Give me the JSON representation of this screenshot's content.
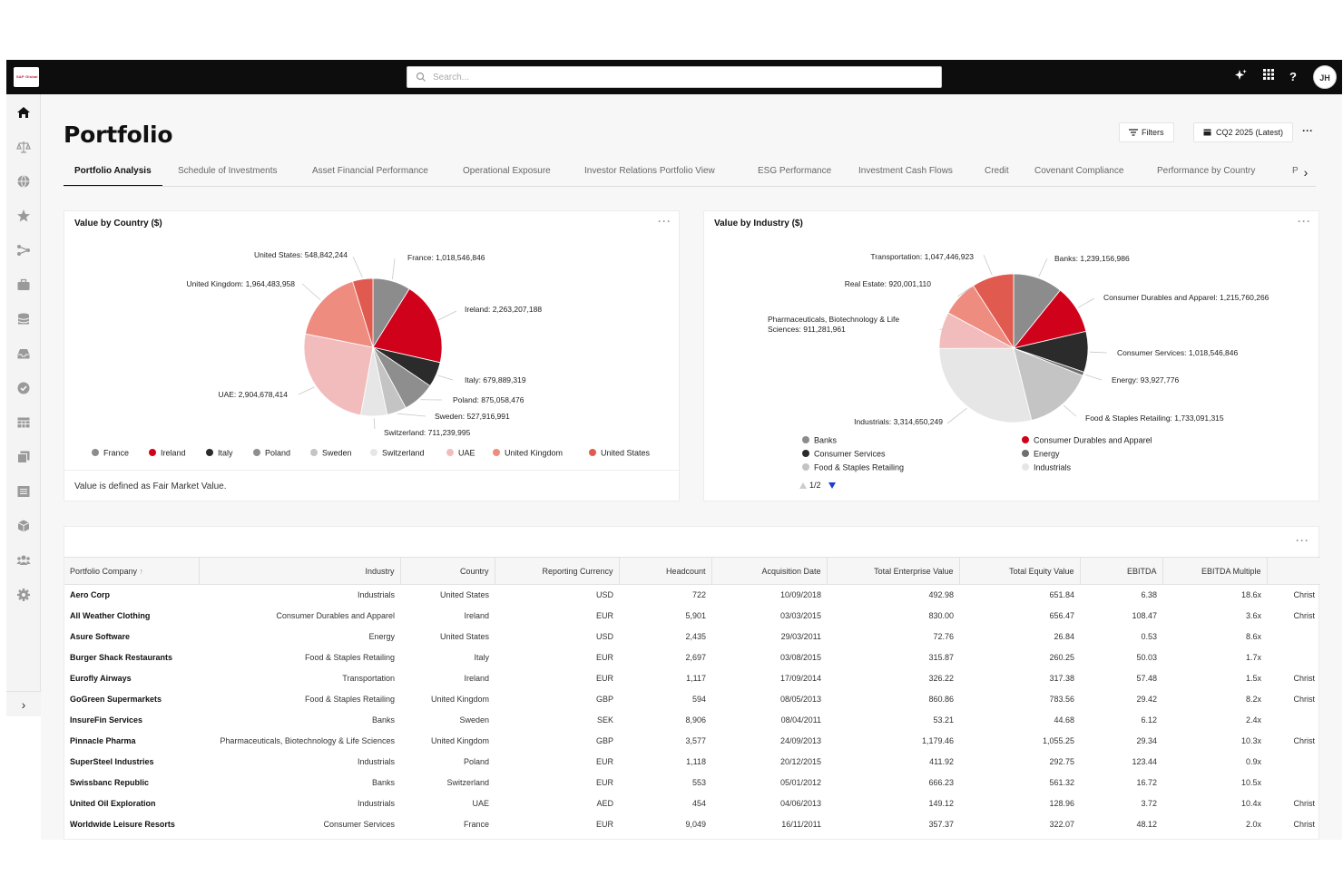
{
  "header": {
    "logo_text": "S&P Global",
    "search_placeholder": "Search...",
    "icons": [
      "sparkle-icon",
      "apps-grid-icon",
      "help-icon"
    ],
    "help_label": "?",
    "avatar_initials": "JH"
  },
  "sidebar": {
    "items": [
      "home-icon",
      "scales-icon",
      "globe-icon",
      "star-icon",
      "share-icon",
      "briefcase-icon",
      "database-icon",
      "inbox-icon",
      "check-circle-icon",
      "table-icon",
      "copy-icon",
      "list-icon",
      "cube-icon",
      "users-icon",
      "gear-icon"
    ],
    "expand_label": "›"
  },
  "page": {
    "title": "Portfolio",
    "filters_label": "Filters",
    "period_label": "CQ2 2025 (Latest)",
    "more_label": "···"
  },
  "tabs": [
    {
      "label": "Portfolio Analysis",
      "active": true
    },
    {
      "label": "Schedule of Investments"
    },
    {
      "label": "Asset Financial Performance"
    },
    {
      "label": "Operational Exposure"
    },
    {
      "label": "Investor Relations Portfolio View"
    },
    {
      "label": "ESG Performance"
    },
    {
      "label": "Investment Cash Flows"
    },
    {
      "label": "Credit"
    },
    {
      "label": "Covenant Compliance"
    },
    {
      "label": "Performance by Country"
    },
    {
      "label": "Po"
    }
  ],
  "country_card": {
    "title": "Value by Country ($)",
    "note": "Value is defined as Fair Market Value.",
    "more_label": "···"
  },
  "industry_card": {
    "title": "Value by Industry ($)",
    "more_label": "···",
    "pager": "1/2"
  },
  "chart_data": [
    {
      "type": "pie",
      "title": "Value by Country ($)",
      "legend_placement": "bottom",
      "slices": [
        {
          "label": "France",
          "value": 1018546846,
          "display": "France: 1,018,546,846",
          "color": "#8c8c8c"
        },
        {
          "label": "Ireland",
          "value": 2263207188,
          "display": "Ireland: 2,263,207,188",
          "color": "#d0021b"
        },
        {
          "label": "Italy",
          "value": 679889319,
          "display": "Italy: 679,889,319",
          "color": "#2b2b2b"
        },
        {
          "label": "Poland",
          "value": 875058476,
          "display": "Poland: 875,058,476",
          "color": "#8e8e8e"
        },
        {
          "label": "Sweden",
          "value": 527916991,
          "display": "Sweden: 527,916,991",
          "color": "#c4c4c4"
        },
        {
          "label": "Switzerland",
          "value": 711239995,
          "display": "Switzerland: 711,239,995",
          "color": "#e6e6e6"
        },
        {
          "label": "UAE",
          "value": 2904678414,
          "display": "UAE: 2,904,678,414",
          "color": "#f2bcbc"
        },
        {
          "label": "United Kingdom",
          "value": 1964483958,
          "display": "United Kingdom: 1,964,483,958",
          "color": "#ee8c80"
        },
        {
          "label": "United States",
          "value": 548842244,
          "display": "United States: 548,842,244",
          "color": "#e05a4f"
        }
      ]
    },
    {
      "type": "pie",
      "title": "Value by Industry ($)",
      "legend_placement": "bottom",
      "slices": [
        {
          "label": "Banks",
          "value": 1239156986,
          "display": "Banks: 1,239,156,986",
          "color": "#8c8c8c"
        },
        {
          "label": "Consumer Durables and Apparel",
          "value": 1215760266,
          "display": "Consumer Durables and Apparel: 1,215,760,266",
          "color": "#d0021b"
        },
        {
          "label": "Consumer Services",
          "value": 1018546846,
          "display": "Consumer Services: 1,018,546,846",
          "color": "#2b2b2b"
        },
        {
          "label": "Energy",
          "value": 93927776,
          "display": "Energy: 93,927,776",
          "color": "#6e6e6e"
        },
        {
          "label": "Food & Staples Retailing",
          "value": 1733091315,
          "display": "Food & Staples Retailing: 1,733,091,315",
          "color": "#c4c4c4"
        },
        {
          "label": "Industrials",
          "value": 3314650249,
          "display": "Industrials: 3,314,650,249",
          "color": "#e6e6e6"
        },
        {
          "label": "Pharmaceuticals, Biotechnology & Life Sciences",
          "value": 911281961,
          "display": "Pharmaceuticals, Biotechnology & Life Sciences: 911,281,961",
          "color": "#f2bcbc"
        },
        {
          "label": "Real Estate",
          "value": 920001110,
          "display": "Real Estate: 920,001,110",
          "color": "#ee8c80"
        },
        {
          "label": "Transportation",
          "value": 1047446923,
          "display": "Transportation: 1,047,446,923",
          "color": "#e05a4f"
        }
      ],
      "legend_visible": [
        "Banks",
        "Consumer Durables and Apparel",
        "Consumer Services",
        "Energy",
        "Food & Staples Retailing",
        "Industrials"
      ]
    }
  ],
  "table": {
    "more_label": "···",
    "columns": [
      "Portfolio Company",
      "Industry",
      "Country",
      "Reporting Currency",
      "Headcount",
      "Acquisition Date",
      "Total Enterprise Value",
      "Total Equity Value",
      "EBITDA",
      "EBITDA Multiple",
      ""
    ],
    "rows": [
      [
        "Aero Corp",
        "Industrials",
        "United States",
        "USD",
        "722",
        "10/09/2018",
        "492.98",
        "651.84",
        "6.38",
        "18.6x",
        "Christ"
      ],
      [
        "All Weather Clothing",
        "Consumer Durables and Apparel",
        "Ireland",
        "EUR",
        "5,901",
        "03/03/2015",
        "830.00",
        "656.47",
        "108.47",
        "3.6x",
        "Christ"
      ],
      [
        "Asure Software",
        "Energy",
        "United States",
        "USD",
        "2,435",
        "29/03/2011",
        "72.76",
        "26.84",
        "0.53",
        "8.6x",
        ""
      ],
      [
        "Burger Shack Restaurants",
        "Food & Staples Retailing",
        "Italy",
        "EUR",
        "2,697",
        "03/08/2015",
        "315.87",
        "260.25",
        "50.03",
        "1.7x",
        ""
      ],
      [
        "Eurofly Airways",
        "Transportation",
        "Ireland",
        "EUR",
        "1,117",
        "17/09/2014",
        "326.22",
        "317.38",
        "57.48",
        "1.5x",
        "Christ"
      ],
      [
        "GoGreen Supermarkets",
        "Food & Staples Retailing",
        "United Kingdom",
        "GBP",
        "594",
        "08/05/2013",
        "860.86",
        "783.56",
        "29.42",
        "8.2x",
        "Christ"
      ],
      [
        "InsureFin Services",
        "Banks",
        "Sweden",
        "SEK",
        "8,906",
        "08/04/2011",
        "53.21",
        "44.68",
        "6.12",
        "2.4x",
        ""
      ],
      [
        "Pinnacle Pharma",
        "Pharmaceuticals, Biotechnology & Life Sciences",
        "United Kingdom",
        "GBP",
        "3,577",
        "24/09/2013",
        "1,179.46",
        "1,055.25",
        "29.34",
        "10.3x",
        "Christ"
      ],
      [
        "SuperSteel Industries",
        "Industrials",
        "Poland",
        "EUR",
        "1,118",
        "20/12/2015",
        "411.92",
        "292.75",
        "123.44",
        "0.9x",
        ""
      ],
      [
        "Swissbanc Republic",
        "Banks",
        "Switzerland",
        "EUR",
        "553",
        "05/01/2012",
        "666.23",
        "561.32",
        "16.72",
        "10.5x",
        ""
      ],
      [
        "United Oil Exploration",
        "Industrials",
        "UAE",
        "AED",
        "454",
        "04/06/2013",
        "149.12",
        "128.96",
        "3.72",
        "10.4x",
        "Christ"
      ],
      [
        "Worldwide Leisure Resorts",
        "Consumer Services",
        "France",
        "EUR",
        "9,049",
        "16/11/2011",
        "357.37",
        "322.07",
        "48.12",
        "2.0x",
        "Christ"
      ]
    ]
  }
}
